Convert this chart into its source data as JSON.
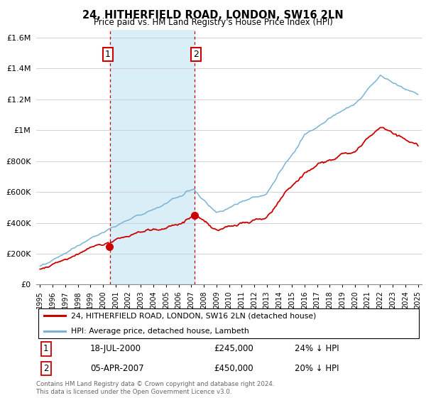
{
  "title": "24, HITHERFIELD ROAD, LONDON, SW16 2LN",
  "subtitle": "Price paid vs. HM Land Registry's House Price Index (HPI)",
  "legend_line1": "24, HITHERFIELD ROAD, LONDON, SW16 2LN (detached house)",
  "legend_line2": "HPI: Average price, detached house, Lambeth",
  "annotation1_date": "18-JUL-2000",
  "annotation1_price": "£245,000",
  "annotation1_hpi": "24% ↓ HPI",
  "annotation2_date": "05-APR-2007",
  "annotation2_price": "£450,000",
  "annotation2_hpi": "20% ↓ HPI",
  "footer": "Contains HM Land Registry data © Crown copyright and database right 2024.\nThis data is licensed under the Open Government Licence v3.0.",
  "hpi_color": "#7ab3d4",
  "price_color": "#cc0000",
  "shaded_color": "#daeef8",
  "annotation_box_color": "#cc0000",
  "ylim_max": 1650000,
  "ylim_min": 0,
  "purchase1_year": 2000.54,
  "purchase1_price": 245000,
  "purchase2_year": 2007.25,
  "purchase2_price": 450000
}
